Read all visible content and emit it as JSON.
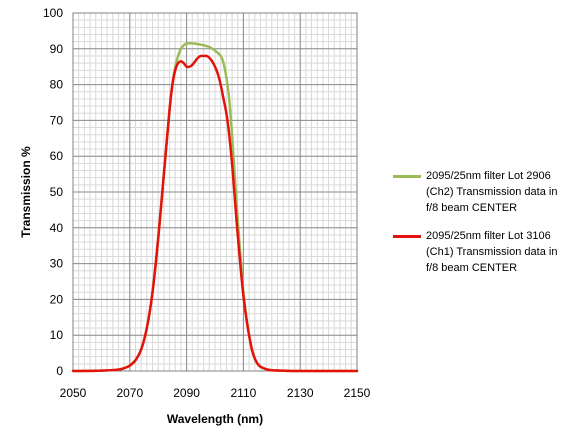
{
  "chart_data": {
    "type": "line",
    "xlabel": "Wavelength (nm)",
    "ylabel": "Transmission %",
    "xlim": [
      2050,
      2150
    ],
    "ylim": [
      0,
      100
    ],
    "x_ticks": [
      2050,
      2070,
      2090,
      2110,
      2130,
      2150
    ],
    "y_ticks": [
      0,
      10,
      20,
      30,
      40,
      50,
      60,
      70,
      80,
      90,
      100
    ],
    "minor_x_step": 2,
    "minor_y_step": 2,
    "grid": true,
    "legend_position": "right",
    "series": [
      {
        "name": "2095/25nm filter Lot 2906 (Ch2) Transmission data in f/8 beam CENTER",
        "color": "#9BBB59",
        "x": [
          2050,
          2060,
          2066,
          2068,
          2070,
          2072,
          2074,
          2076,
          2078,
          2080,
          2082,
          2084,
          2085,
          2086,
          2087,
          2088,
          2089,
          2090,
          2092,
          2094,
          2096,
          2098,
          2100,
          2102,
          2103,
          2104,
          2105,
          2106,
          2107,
          2108,
          2109,
          2110,
          2111,
          2112,
          2113,
          2114,
          2115,
          2116,
          2118,
          2120,
          2125,
          2130,
          2150
        ],
        "y": [
          0,
          0.1,
          0.4,
          0.8,
          1.5,
          3,
          6,
          12,
          22,
          37,
          55,
          73,
          80,
          85,
          88,
          90,
          91,
          91.5,
          91.5,
          91.3,
          91,
          90.5,
          89.5,
          88,
          86,
          82,
          76,
          66,
          54,
          42,
          32,
          22,
          15,
          10,
          6,
          3.5,
          2,
          1.2,
          0.5,
          0.2,
          0.05,
          0,
          0
        ]
      },
      {
        "name": "2095/25nm filter Lot 3106 (Ch1) Transmission data in f/8 beam CENTER",
        "color": "#E3120B",
        "x": [
          2050,
          2060,
          2066,
          2068,
          2070,
          2072,
          2074,
          2076,
          2078,
          2080,
          2082,
          2084,
          2085,
          2086,
          2087,
          2088,
          2089,
          2090,
          2091,
          2092,
          2093,
          2094,
          2095,
          2096,
          2097,
          2098,
          2099,
          2100,
          2101,
          2102,
          2103,
          2104,
          2105,
          2106,
          2107,
          2108,
          2109,
          2110,
          2111,
          2112,
          2113,
          2114,
          2115,
          2116,
          2118,
          2120,
          2125,
          2130,
          2150
        ],
        "y": [
          0,
          0.1,
          0.4,
          0.8,
          1.5,
          3,
          6,
          12,
          22,
          37,
          55,
          73,
          80,
          84,
          86,
          86.5,
          86,
          85,
          85,
          85.5,
          86.5,
          87.5,
          88,
          88,
          88,
          87.5,
          86.5,
          85,
          83,
          80,
          76,
          72,
          66,
          58,
          48,
          38,
          29,
          21,
          15,
          10,
          6,
          3.5,
          2,
          1.2,
          0.5,
          0.2,
          0.05,
          0,
          0
        ]
      }
    ]
  },
  "legend": {
    "items": [
      {
        "text": "2095/25nm filter Lot 2906 (Ch2) Transmission data in f/8 beam CENTER",
        "color": "#9BBB59"
      },
      {
        "text": "2095/25nm filter Lot 3106 (Ch1) Transmission data in f/8 beam CENTER",
        "color": "#E3120B"
      }
    ]
  }
}
